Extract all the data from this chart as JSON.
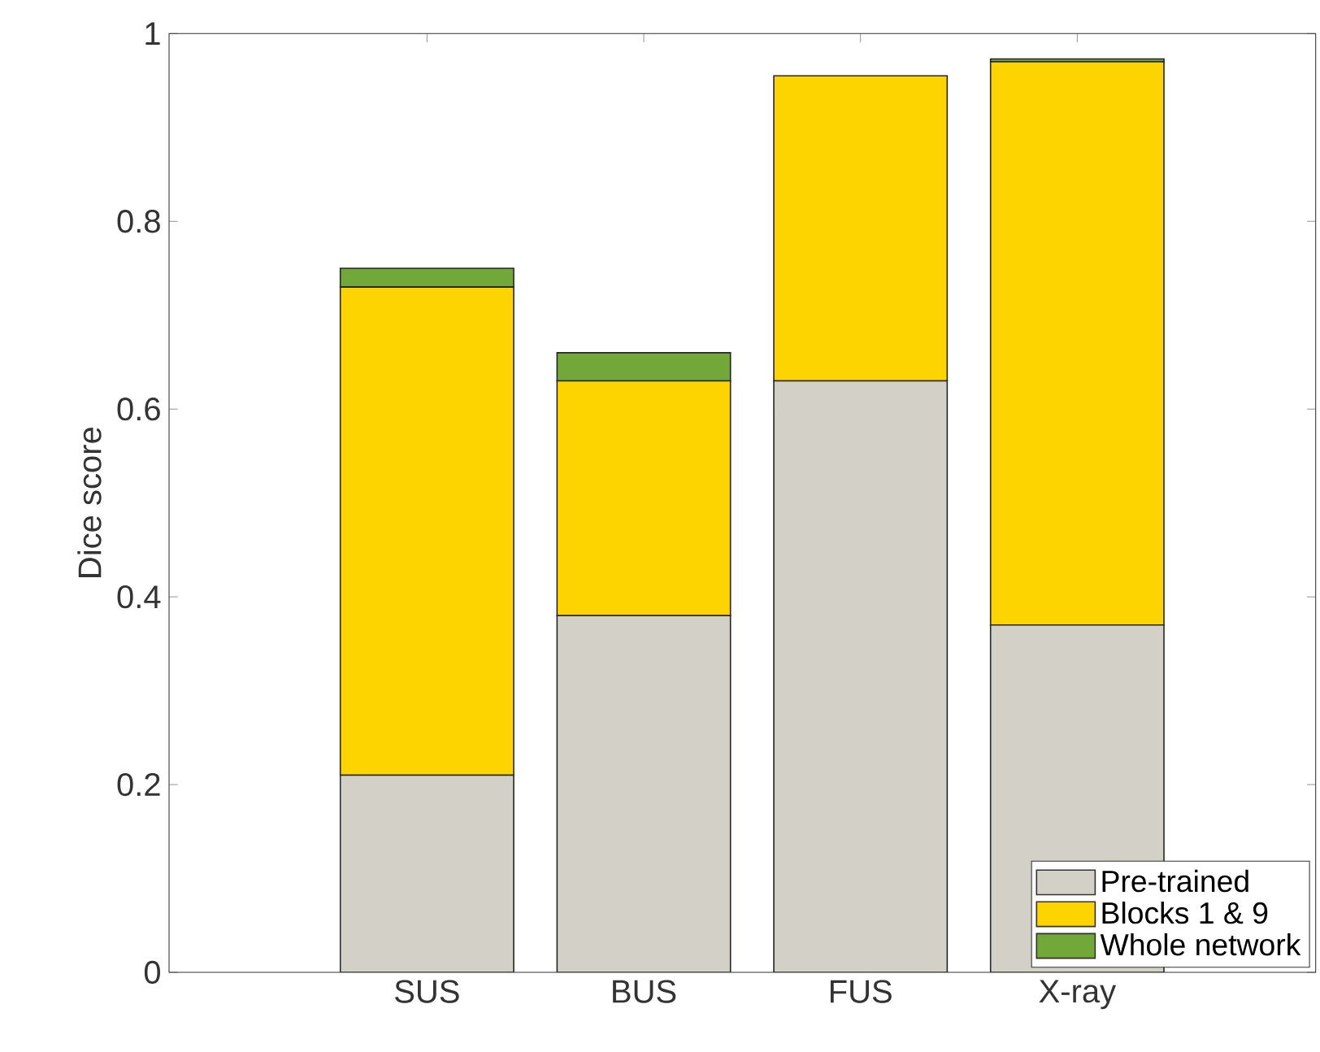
{
  "chart_data": {
    "type": "bar",
    "stacked": true,
    "ylabel": "Dice score",
    "categories": [
      "SUS",
      "BUS",
      "FUS",
      "X-ray"
    ],
    "series": [
      {
        "name": "Pre-trained",
        "color": "#d3d1c7",
        "values": [
          0.21,
          0.38,
          0.63,
          0.37
        ]
      },
      {
        "name": "Blocks 1 & 9",
        "color": "#fdd400",
        "values": [
          0.52,
          0.25,
          0.325,
          0.6
        ]
      },
      {
        "name": "Whole network",
        "color": "#72a839",
        "values": [
          0.02,
          0.03,
          0,
          0.003
        ]
      }
    ],
    "ylim": [
      0,
      1
    ],
    "yticks": [
      0,
      0.2,
      0.4,
      0.6,
      0.8,
      1
    ],
    "legend": "bottom right"
  }
}
